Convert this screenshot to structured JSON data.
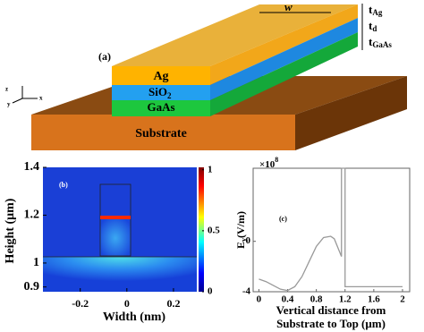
{
  "schematic": {
    "label": "(a)",
    "layers": [
      "Ag",
      "SiO",
      "GaAs",
      "Substrate"
    ],
    "sio2_subscript": "2",
    "width_label": "w",
    "thickness_labels": [
      [
        "t",
        "Ag"
      ],
      [
        "t",
        "d"
      ],
      [
        "t",
        "GaAs"
      ]
    ],
    "axes": [
      "z",
      "y",
      "x"
    ]
  },
  "chart_data": [
    {
      "type": "heatmap",
      "label": "(b)",
      "xlabel": "Width (nm)",
      "ylabel": "Height (μm)",
      "xlim": [
        -0.36,
        0.3
      ],
      "xticks": [
        -0.2,
        0,
        0.2
      ],
      "ylim": [
        0.88,
        1.4
      ],
      "yticks": [
        0.9,
        1,
        1.2,
        1.4
      ],
      "clim": [
        0,
        1.02
      ],
      "cticks": [
        0,
        0.5,
        1
      ]
    },
    {
      "type": "line",
      "label": "(c)",
      "ylabel": [
        "E",
        "y",
        "(V/m)"
      ],
      "scale_label": [
        "×10",
        "8"
      ],
      "xlabel": [
        "Vertical distance from",
        "Substrate to Top (μm)"
      ],
      "xlim": [
        -0.08,
        2.1
      ],
      "xticks": [
        0,
        0.4,
        0.8,
        1.2,
        1.6,
        2
      ],
      "ylim": [
        -4,
        5.8
      ],
      "yticks": [
        -4,
        0
      ],
      "series": [
        {
          "color": "#999999",
          "x": [
            0,
            0.1,
            0.2,
            0.3,
            0.4,
            0.5,
            0.6,
            0.7,
            0.8,
            0.9,
            1.0,
            1.05,
            1.1,
            1.15,
            1.15,
            1.2,
            1.2,
            1.6,
            2.0
          ],
          "values": [
            -3,
            -3.2,
            -3.5,
            -3.8,
            -3.9,
            -3.6,
            -2.8,
            -1.6,
            -0.4,
            0.3,
            0.4,
            0.2,
            -0.5,
            -1.2,
            5.8,
            5.8,
            -3.6,
            -3.6,
            -3.6
          ]
        }
      ]
    }
  ]
}
